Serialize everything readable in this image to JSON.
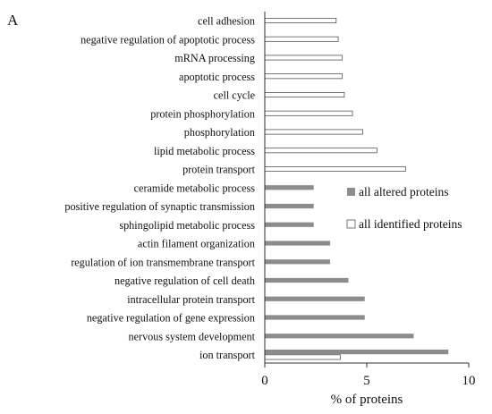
{
  "panel_label": "A",
  "colors": {
    "altered_fill": "#8c8c8c",
    "identified_fill": "#ffffff",
    "bar_stroke": "#555555",
    "axis": "#333333",
    "text": "#111111"
  },
  "chart_data": {
    "type": "bar",
    "orientation": "horizontal",
    "title": "",
    "xlabel": "% of proteins",
    "ylabel": "",
    "xlim": [
      0,
      10
    ],
    "xticks": [
      0,
      5,
      10
    ],
    "grid": false,
    "legend_position": "right-middle",
    "categories": [
      "cell adhesion",
      "negative regulation of apoptotic process",
      "mRNA processing",
      "apoptotic process",
      "cell cycle",
      "protein phosphorylation",
      "phosphorylation",
      "lipid metabolic process",
      "protein transport",
      "ceramide metabolic process",
      "positive regulation of synaptic transmission",
      "sphingolipid metabolic process",
      "actin filament organization",
      "regulation of ion transmembrane transport",
      "negative regulation of cell death",
      "intracellular protein transport",
      "negative regulation of gene expression",
      "nervous system development",
      "ion transport"
    ],
    "series": [
      {
        "name": "all altered proteins",
        "color": "#8c8c8c",
        "values": [
          null,
          null,
          null,
          null,
          null,
          null,
          null,
          null,
          null,
          2.4,
          2.4,
          2.4,
          3.2,
          3.2,
          4.1,
          4.9,
          4.9,
          7.3,
          9.0
        ]
      },
      {
        "name": "all identified proteins",
        "color": "#ffffff",
        "values": [
          3.5,
          3.6,
          3.8,
          3.8,
          3.9,
          4.3,
          4.8,
          5.5,
          6.9,
          null,
          null,
          null,
          null,
          null,
          null,
          null,
          null,
          null,
          3.7
        ]
      }
    ]
  }
}
